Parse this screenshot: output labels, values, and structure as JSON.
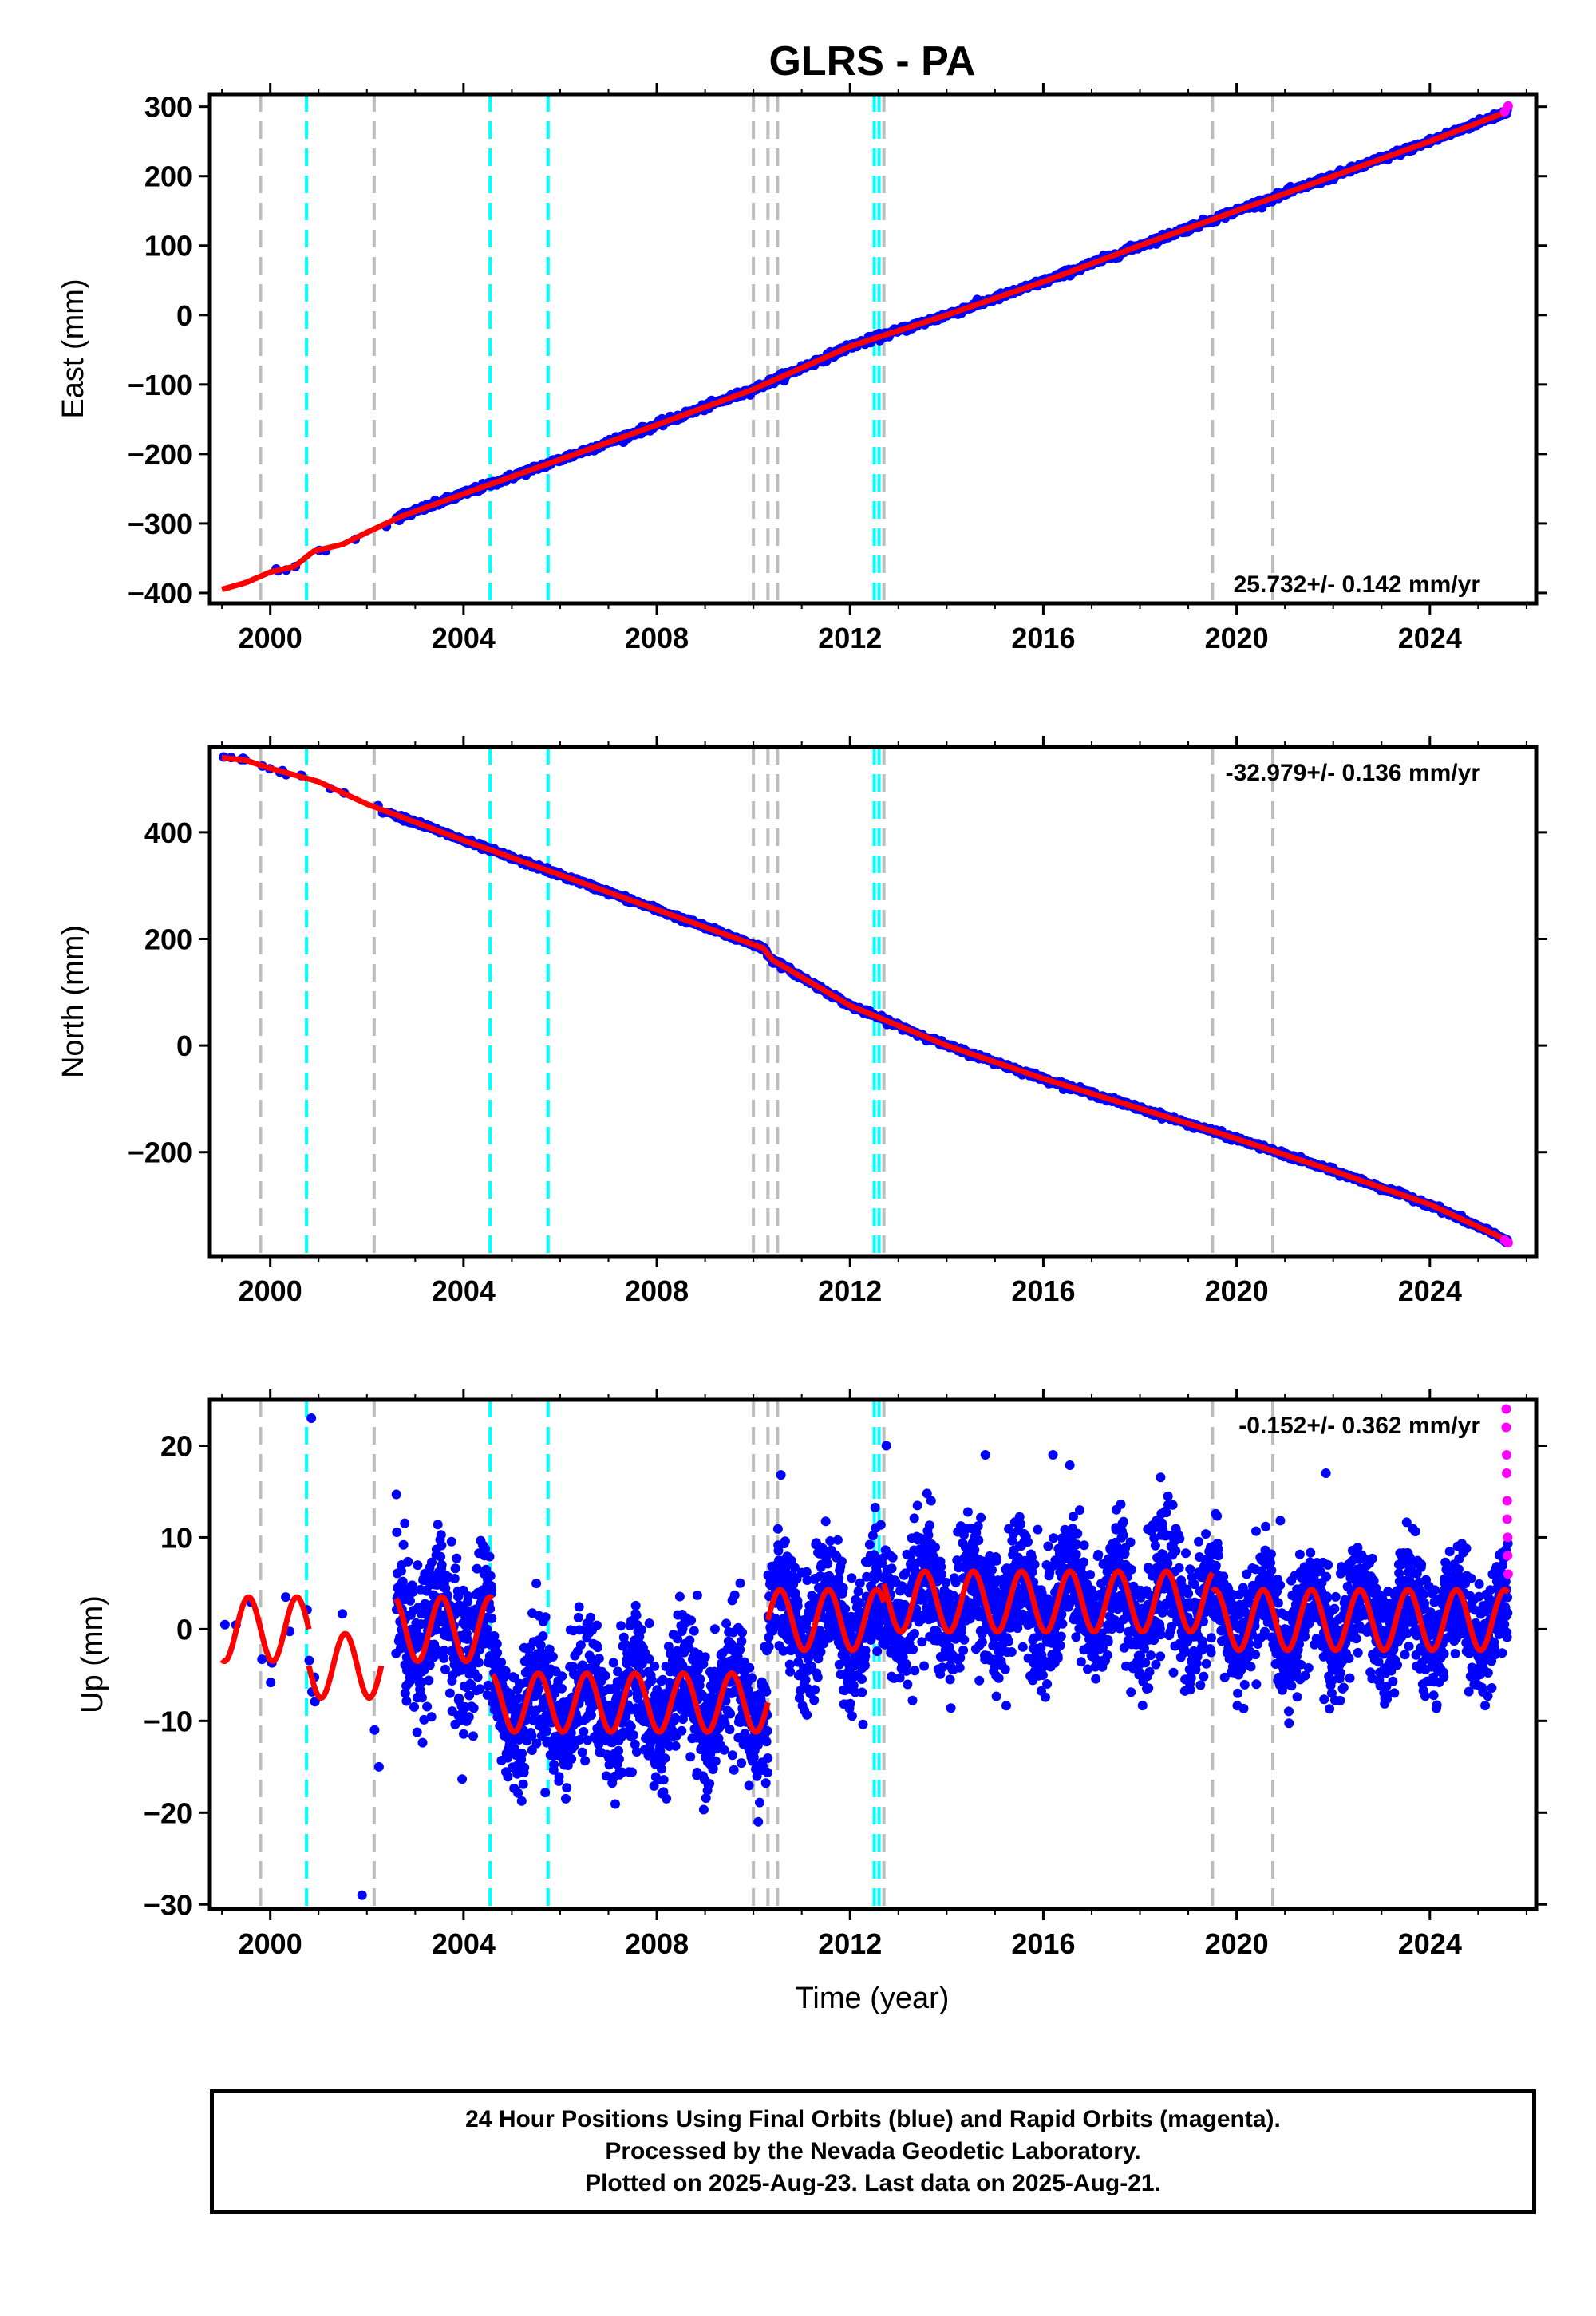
{
  "figure": {
    "title": "GLRS - PA",
    "xlabel": "Time (year)",
    "footer": [
      "24 Hour Positions Using Final Orbits (blue) and Rapid Orbits (magenta).",
      "Processed by the Nevada Geodetic Laboratory.",
      "Plotted on 2025-Aug-23. Last data on 2025-Aug-21."
    ]
  },
  "colors": {
    "final": "#0000ff",
    "rapid": "#ff00ff",
    "model": "#ff0000",
    "equipment_change": "#bdbdbd",
    "earthquake": "#00ffff"
  },
  "chart_data": [
    {
      "type": "scatter",
      "ylabel": "East (mm)",
      "rate_label": "25.732+/- 0.142 mm/yr",
      "rate_position": "bottom-right",
      "xlim": [
        1998.75,
        2026.2
      ],
      "ylim": [
        -415,
        318
      ],
      "x_ticks": [
        2000,
        2004,
        2008,
        2012,
        2016,
        2020,
        2024
      ],
      "y_ticks": [
        -400,
        -300,
        -200,
        -100,
        0,
        100,
        200,
        300
      ],
      "series": [
        {
          "kind": "model_line",
          "x": [
            1999.0,
            1999.5,
            2000.0,
            2000.5,
            2000.9,
            2001.5,
            2002.0,
            2002.7,
            2004.5,
            2006.0,
            2008.0,
            2010.0,
            2012.0,
            2014.0,
            2016.0,
            2018.0,
            2020.0,
            2022.0,
            2024.0,
            2025.6
          ],
          "y": [
            -395,
            -385,
            -370,
            -362,
            -340,
            -330,
            -313,
            -290,
            -245,
            -208,
            -158,
            -107,
            -45,
            0,
            48,
            100,
            150,
            200,
            250,
            293
          ]
        }
      ],
      "final_point_count": 8500,
      "rapid_points": {
        "x": [
          2025.55,
          2025.62
        ],
        "y": [
          293,
          301
        ]
      }
    },
    {
      "type": "scatter",
      "ylabel": "North (mm)",
      "rate_label": "-32.979+/- 0.136 mm/yr",
      "rate_position": "top-right",
      "xlim": [
        1998.75,
        2026.2
      ],
      "ylim": [
        -395,
        560
      ],
      "x_ticks": [
        2000,
        2004,
        2008,
        2012,
        2016,
        2020,
        2024
      ],
      "y_ticks": [
        -200,
        0,
        200,
        400
      ],
      "series": [
        {
          "kind": "model_line",
          "x": [
            1999.0,
            1999.5,
            2000.0,
            2001.0,
            2002.0,
            2004.0,
            2006.0,
            2008.0,
            2010.2,
            2010.4,
            2012.0,
            2014.0,
            2016.0,
            2018.0,
            2020.0,
            2022.0,
            2024.0,
            2025.6
          ],
          "y": [
            540,
            535,
            520,
            495,
            453,
            385,
            320,
            255,
            183,
            160,
            75,
            0,
            -62,
            -118,
            -175,
            -235,
            -298,
            -365
          ]
        }
      ],
      "final_point_count": 8500,
      "rapid_points": {
        "x": [
          2025.55,
          2025.62
        ],
        "y": [
          -365,
          -370
        ]
      }
    },
    {
      "type": "scatter",
      "ylabel": "Up (mm)",
      "rate_label": "-0.152+/- 0.362 mm/yr",
      "rate_position": "top-right",
      "xlim": [
        1998.75,
        2026.2
      ],
      "ylim": [
        -30.5,
        25
      ],
      "x_ticks": [
        2000,
        2004,
        2008,
        2012,
        2016,
        2020,
        2024
      ],
      "y_ticks": [
        -30,
        -20,
        -10,
        0,
        10,
        20
      ],
      "segments": [
        {
          "start": 1999.0,
          "end": 2000.8,
          "offset": 0,
          "amp": 3.5,
          "noise": 2.0
        },
        {
          "start": 2000.8,
          "end": 2002.3,
          "offset": -4,
          "amp": 3.5,
          "noise": 2.0
        },
        {
          "start": 2002.6,
          "end": 2004.6,
          "offset": 0,
          "amp": 3.5,
          "noise": 4.0
        },
        {
          "start": 2004.6,
          "end": 2010.3,
          "offset": -8,
          "amp": 3.2,
          "noise": 3.5
        },
        {
          "start": 2010.3,
          "end": 2012.7,
          "offset": 1,
          "amp": 3.3,
          "noise": 3.5
        },
        {
          "start": 2012.7,
          "end": 2019.5,
          "offset": 3,
          "amp": 3.3,
          "noise": 3.5
        },
        {
          "start": 2019.5,
          "end": 2025.62,
          "offset": 1,
          "amp": 3.3,
          "noise": 3.0
        }
      ],
      "outliers": {
        "x": [
          2000.85,
          2001.9,
          2002.25,
          2010.1,
          2012.75,
          2014.8,
          2016.2,
          2021.85
        ],
        "y": [
          23,
          -29,
          -15,
          -21,
          20,
          19,
          19,
          17
        ]
      },
      "final_point_count": 8500,
      "rapid_points": {
        "x": [
          2025.58,
          2025.58,
          2025.59,
          2025.59,
          2025.6,
          2025.6,
          2025.61,
          2025.61,
          2025.62
        ],
        "y": [
          24,
          22,
          19,
          17,
          14,
          12,
          10,
          8,
          6
        ]
      }
    }
  ],
  "events": {
    "equipment_changes": [
      1999.8,
      2002.15,
      2010.0,
      2010.3,
      2010.5,
      2012.7,
      2019.5,
      2020.75
    ],
    "earthquakes": [
      2000.75,
      2004.55,
      2005.75,
      2012.5,
      2012.6
    ]
  }
}
